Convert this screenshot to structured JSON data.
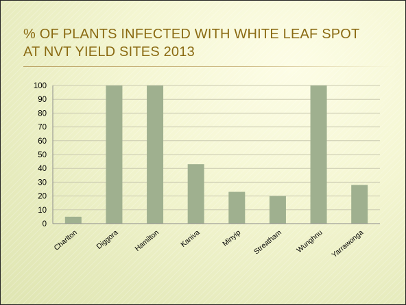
{
  "slide": {
    "title_line1": "% OF PLANTS INFECTED WITH WHITE LEAF SPOT",
    "title_line2": "AT NVT YIELD SITES 2013"
  },
  "colors": {
    "title": "#8a6a12",
    "bar": "#9fb08f",
    "grid": "#c9c9b0",
    "axis": "#8c8c8c"
  },
  "chart_data": {
    "type": "bar",
    "title": "",
    "xlabel": "",
    "ylabel": "",
    "ylim": [
      0,
      100
    ],
    "yticks": [
      0,
      10,
      20,
      30,
      40,
      50,
      60,
      70,
      80,
      90,
      100
    ],
    "grid": true,
    "legend": "none",
    "categories": [
      "Charlton",
      "Diggora",
      "Hamilton",
      "Kaniva",
      "Minyip",
      "Streatham",
      "Wunghnu",
      "Yarrawonga"
    ],
    "values": [
      5,
      100,
      100,
      43,
      23,
      20,
      100,
      28
    ]
  }
}
